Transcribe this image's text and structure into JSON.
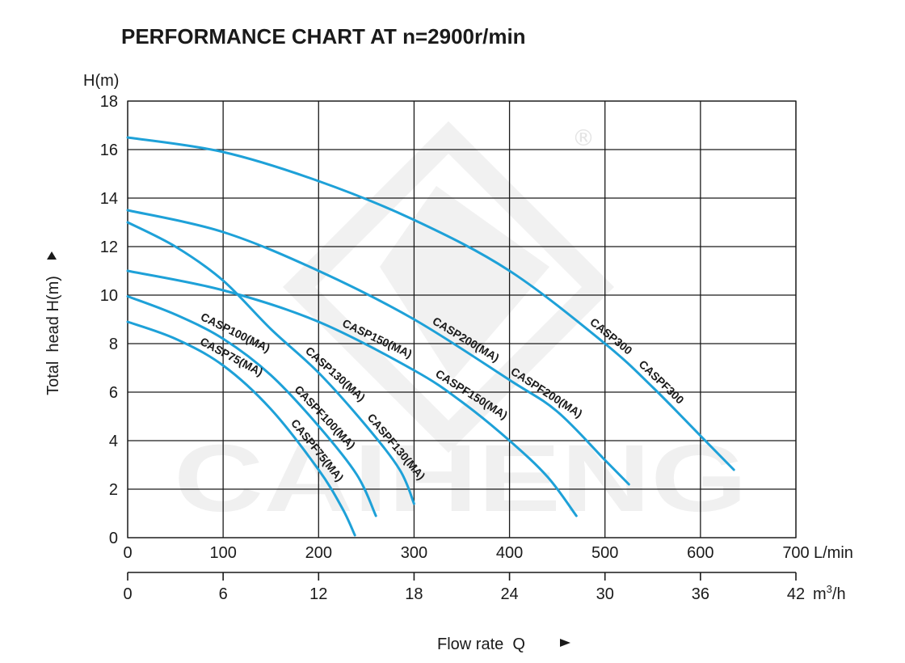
{
  "chart_data": {
    "type": "line",
    "title": "PERFORMANCE CHART AT n=2900r/min",
    "ylabel": "Total  head H(m)",
    "y_unit": "H(m)",
    "xlabel": "Flow rate  Q",
    "x_unit": "L/min",
    "x2_unit": "m³/h",
    "xlim": [
      0,
      700
    ],
    "ylim": [
      0,
      18
    ],
    "x2lim": [
      0,
      42
    ],
    "x_ticks": [
      "0",
      "100",
      "200",
      "300",
      "400",
      "500",
      "600",
      "700"
    ],
    "x2_ticks": [
      "0",
      "6",
      "12",
      "18",
      "24",
      "30",
      "36",
      "42"
    ],
    "y_ticks": [
      "0",
      "2",
      "4",
      "6",
      "8",
      "10",
      "12",
      "14",
      "16",
      "18"
    ],
    "grid": true,
    "series": [
      {
        "name": "CASP75(MA)",
        "label2": "CASPF75(MA)",
        "x": [
          0,
          50,
          100,
          150,
          200,
          225,
          238
        ],
        "y": [
          8.9,
          8.2,
          7.1,
          5.3,
          2.8,
          1.2,
          0.1
        ]
      },
      {
        "name": "CASP100(MA)",
        "label2": "CASPF100(MA)",
        "x": [
          0,
          50,
          100,
          150,
          200,
          240,
          260
        ],
        "y": [
          9.95,
          9.2,
          8.2,
          6.7,
          4.6,
          2.6,
          0.9
        ]
      },
      {
        "name": "CASP130(MA)",
        "label2": "CASPF130(MA)",
        "x": [
          0,
          50,
          100,
          150,
          200,
          250,
          285,
          300
        ],
        "y": [
          13.0,
          12.0,
          10.6,
          8.6,
          6.8,
          4.6,
          2.8,
          1.4
        ]
      },
      {
        "name": "CASP150(MA)",
        "label2": "CASPF150(MA)",
        "x": [
          0,
          100,
          200,
          300,
          350,
          400,
          440,
          470
        ],
        "y": [
          11.0,
          10.2,
          8.9,
          6.9,
          5.6,
          4.0,
          2.5,
          0.9
        ]
      },
      {
        "name": "CASP200(MA)",
        "label2": "CASPF200(MA)",
        "x": [
          0,
          100,
          200,
          300,
          400,
          450,
          500,
          525
        ],
        "y": [
          13.5,
          12.6,
          11.0,
          9.0,
          6.5,
          5.2,
          3.2,
          2.2
        ]
      },
      {
        "name": "CASP300",
        "label2": "CASPF300",
        "x": [
          0,
          100,
          200,
          300,
          400,
          500,
          550,
          600,
          635
        ],
        "y": [
          16.5,
          15.9,
          14.7,
          13.1,
          11.0,
          8.0,
          6.2,
          4.2,
          2.8
        ]
      }
    ],
    "line_color": "#1ea1d8"
  },
  "watermark": {
    "text": "CAIHENG",
    "mark": "®"
  }
}
